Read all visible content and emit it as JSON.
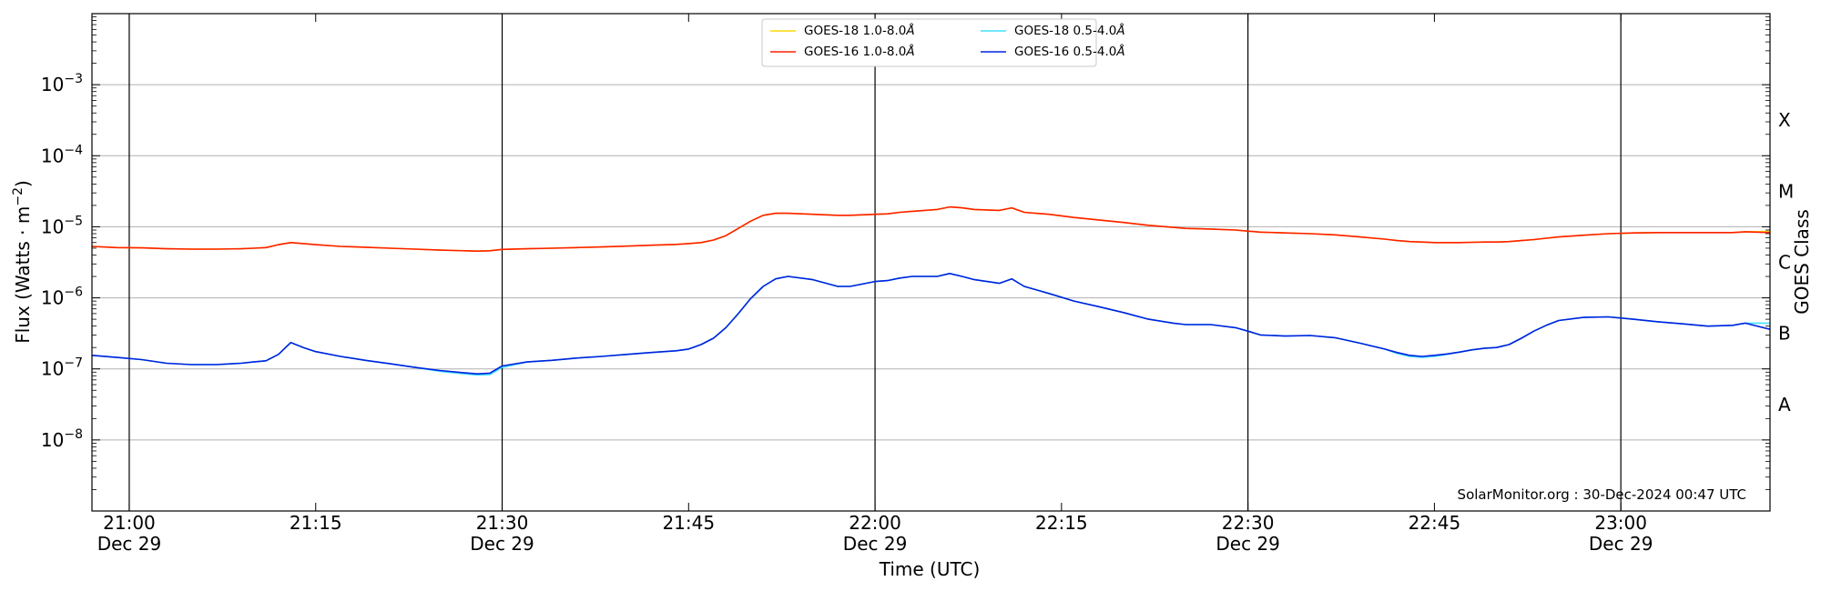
{
  "chart_data": {
    "type": "line",
    "xlabel": "Time (UTC)",
    "ylabel": "Flux (Watts · m",
    "ylabel_sup": "−2",
    "ylabel_close": ")",
    "y2label": "GOES Class",
    "yscale": "log",
    "xlim": [
      "2024-12-29T20:57",
      "2024-12-29T23:12"
    ],
    "ylim": [
      1e-09,
      0.01
    ],
    "grid": true,
    "legend_placement": "top-center",
    "x_ticks": [
      {
        "time": "2024-12-29T21:00",
        "label": "21:00",
        "sublabel": "Dec 29",
        "major": true
      },
      {
        "time": "2024-12-29T21:15",
        "label": "21:15",
        "sublabel": "",
        "major": false
      },
      {
        "time": "2024-12-29T21:30",
        "label": "21:30",
        "sublabel": "Dec 29",
        "major": true
      },
      {
        "time": "2024-12-29T21:45",
        "label": "21:45",
        "sublabel": "",
        "major": false
      },
      {
        "time": "2024-12-29T22:00",
        "label": "22:00",
        "sublabel": "Dec 29",
        "major": true
      },
      {
        "time": "2024-12-29T22:15",
        "label": "22:15",
        "sublabel": "",
        "major": false
      },
      {
        "time": "2024-12-29T22:30",
        "label": "22:30",
        "sublabel": "Dec 29",
        "major": true
      },
      {
        "time": "2024-12-29T22:45",
        "label": "22:45",
        "sublabel": "",
        "major": false
      },
      {
        "time": "2024-12-29T23:00",
        "label": "23:00",
        "sublabel": "Dec 29",
        "major": true
      }
    ],
    "y_ticks": [
      {
        "value": 1e-08,
        "base": "10",
        "exp": "−8"
      },
      {
        "value": 1e-07,
        "base": "10",
        "exp": "−7"
      },
      {
        "value": 1e-06,
        "base": "10",
        "exp": "−6"
      },
      {
        "value": 1e-05,
        "base": "10",
        "exp": "−5"
      },
      {
        "value": 0.0001,
        "base": "10",
        "exp": "−4"
      },
      {
        "value": 0.001,
        "base": "10",
        "exp": "−3"
      }
    ],
    "goes_classes": [
      {
        "label": "A",
        "value": 3.16e-08
      },
      {
        "label": "B",
        "value": 3.16e-07
      },
      {
        "label": "C",
        "value": 3.16e-06
      },
      {
        "label": "M",
        "value": 3.16e-05
      },
      {
        "label": "X",
        "value": 0.000316
      }
    ],
    "x": [
      "2024-12-29T20:57",
      "2024-12-29T20:59",
      "2024-12-29T21:01",
      "2024-12-29T21:03",
      "2024-12-29T21:05",
      "2024-12-29T21:07",
      "2024-12-29T21:09",
      "2024-12-29T21:10",
      "2024-12-29T21:11",
      "2024-12-29T21:12",
      "2024-12-29T21:13",
      "2024-12-29T21:14",
      "2024-12-29T21:15",
      "2024-12-29T21:17",
      "2024-12-29T21:19",
      "2024-12-29T21:21",
      "2024-12-29T21:23",
      "2024-12-29T21:25",
      "2024-12-29T21:27",
      "2024-12-29T21:28",
      "2024-12-29T21:29",
      "2024-12-29T21:30",
      "2024-12-29T21:32",
      "2024-12-29T21:34",
      "2024-12-29T21:36",
      "2024-12-29T21:38",
      "2024-12-29T21:40",
      "2024-12-29T21:42",
      "2024-12-29T21:44",
      "2024-12-29T21:45",
      "2024-12-29T21:46",
      "2024-12-29T21:47",
      "2024-12-29T21:48",
      "2024-12-29T21:49",
      "2024-12-29T21:50",
      "2024-12-29T21:51",
      "2024-12-29T21:52",
      "2024-12-29T21:53",
      "2024-12-29T21:55",
      "2024-12-29T21:57",
      "2024-12-29T21:58",
      "2024-12-29T22:00",
      "2024-12-29T22:01",
      "2024-12-29T22:02",
      "2024-12-29T22:03",
      "2024-12-29T22:05",
      "2024-12-29T22:06",
      "2024-12-29T22:07",
      "2024-12-29T22:08",
      "2024-12-29T22:10",
      "2024-12-29T22:11",
      "2024-12-29T22:12",
      "2024-12-29T22:14",
      "2024-12-29T22:16",
      "2024-12-29T22:18",
      "2024-12-29T22:20",
      "2024-12-29T22:22",
      "2024-12-29T22:24",
      "2024-12-29T22:25",
      "2024-12-29T22:27",
      "2024-12-29T22:29",
      "2024-12-29T22:30",
      "2024-12-29T22:31",
      "2024-12-29T22:33",
      "2024-12-29T22:35",
      "2024-12-29T22:37",
      "2024-12-29T22:39",
      "2024-12-29T22:41",
      "2024-12-29T22:42",
      "2024-12-29T22:43",
      "2024-12-29T22:44",
      "2024-12-29T22:45",
      "2024-12-29T22:46",
      "2024-12-29T22:47",
      "2024-12-29T22:48",
      "2024-12-29T22:49",
      "2024-12-29T22:50",
      "2024-12-29T22:51",
      "2024-12-29T22:52",
      "2024-12-29T22:53",
      "2024-12-29T22:54",
      "2024-12-29T22:55",
      "2024-12-29T22:57",
      "2024-12-29T22:59",
      "2024-12-29T23:01",
      "2024-12-29T23:03",
      "2024-12-29T23:05",
      "2024-12-29T23:07",
      "2024-12-29T23:09",
      "2024-12-29T23:10",
      "2024-12-29T23:12"
    ],
    "series": [
      {
        "name": "GOES-18 1.0-8.0",
        "unit": "Å",
        "color": "#ffd700",
        "values": [
          5.3e-06,
          5.1e-06,
          5.05e-06,
          4.9e-06,
          4.85e-06,
          4.85e-06,
          4.9e-06,
          5e-06,
          5.1e-06,
          5.6e-06,
          6e-06,
          5.8e-06,
          5.6e-06,
          5.3e-06,
          5.15e-06,
          5e-06,
          4.85e-06,
          4.7e-06,
          4.6e-06,
          4.55e-06,
          4.6e-06,
          4.8e-06,
          4.9e-06,
          5e-06,
          5.1e-06,
          5.2e-06,
          5.35e-06,
          5.5e-06,
          5.65e-06,
          5.8e-06,
          6e-06,
          6.5e-06,
          7.5e-06,
          9.5e-06,
          1.2e-05,
          1.45e-05,
          1.55e-05,
          1.55e-05,
          1.5e-05,
          1.45e-05,
          1.45e-05,
          1.5e-05,
          1.52e-05,
          1.6e-05,
          1.65e-05,
          1.75e-05,
          1.9e-05,
          1.85e-05,
          1.75e-05,
          1.7e-05,
          1.85e-05,
          1.6e-05,
          1.5e-05,
          1.35e-05,
          1.25e-05,
          1.15e-05,
          1.05e-05,
          9.8e-06,
          9.5e-06,
          9.3e-06,
          9e-06,
          8.7e-06,
          8.4e-06,
          8.2e-06,
          8e-06,
          7.7e-06,
          7.2e-06,
          6.7e-06,
          6.4e-06,
          6.2e-06,
          6.1e-06,
          6e-06,
          6e-06,
          6e-06,
          6.05e-06,
          6.1e-06,
          6.1e-06,
          6.2e-06,
          6.4e-06,
          6.6e-06,
          6.9e-06,
          7.2e-06,
          7.6e-06,
          8e-06,
          8.2e-06,
          8.3e-06,
          8.3e-06,
          8.3e-06,
          8.3e-06,
          8.5e-06,
          8.6e-06
        ]
      },
      {
        "name": "GOES-18 0.5-4.0",
        "unit": "Å",
        "color": "#40e0ff",
        "values": [
          1.55e-07,
          1.45e-07,
          1.35e-07,
          1.2e-07,
          1.15e-07,
          1.15e-07,
          1.2e-07,
          1.25e-07,
          1.3e-07,
          1.6e-07,
          2.35e-07,
          2e-07,
          1.75e-07,
          1.5e-07,
          1.32e-07,
          1.18e-07,
          1.05e-07,
          9.2e-08,
          8.5e-08,
          8.2e-08,
          8.3e-08,
          1.05e-07,
          1.25e-07,
          1.32e-07,
          1.42e-07,
          1.5e-07,
          1.6e-07,
          1.7e-07,
          1.8e-07,
          1.9e-07,
          2.2e-07,
          2.7e-07,
          3.8e-07,
          6e-07,
          9.8e-07,
          1.45e-06,
          1.85e-06,
          2e-06,
          1.8e-06,
          1.45e-06,
          1.45e-06,
          1.7e-06,
          1.75e-06,
          1.9e-06,
          2e-06,
          2e-06,
          2.2e-06,
          2e-06,
          1.8e-06,
          1.6e-06,
          1.85e-06,
          1.45e-06,
          1.15e-06,
          9e-07,
          7.5e-07,
          6.2e-07,
          5e-07,
          4.4e-07,
          4.2e-07,
          4.2e-07,
          3.8e-07,
          3.4e-07,
          3e-07,
          2.9e-07,
          2.95e-07,
          2.75e-07,
          2.3e-07,
          1.9e-07,
          1.65e-07,
          1.5e-07,
          1.45e-07,
          1.5e-07,
          1.6e-07,
          1.72e-07,
          1.85e-07,
          1.95e-07,
          2e-07,
          2.2e-07,
          2.7e-07,
          3.4e-07,
          4.1e-07,
          4.8e-07,
          5.3e-07,
          5.4e-07,
          5e-07,
          4.6e-07,
          4.3e-07,
          4e-07,
          4.1e-07,
          4.4e-07,
          4.4e-07
        ]
      },
      {
        "name": "GOES-16 1.0-8.0",
        "unit": "Å",
        "color": "#ff2000",
        "values": [
          5.3e-06,
          5.1e-06,
          5.05e-06,
          4.9e-06,
          4.85e-06,
          4.85e-06,
          4.9e-06,
          5e-06,
          5.1e-06,
          5.6e-06,
          6e-06,
          5.8e-06,
          5.6e-06,
          5.3e-06,
          5.15e-06,
          5e-06,
          4.85e-06,
          4.7e-06,
          4.6e-06,
          4.55e-06,
          4.6e-06,
          4.8e-06,
          4.9e-06,
          5e-06,
          5.1e-06,
          5.2e-06,
          5.35e-06,
          5.5e-06,
          5.65e-06,
          5.8e-06,
          6e-06,
          6.5e-06,
          7.5e-06,
          9.5e-06,
          1.2e-05,
          1.45e-05,
          1.55e-05,
          1.55e-05,
          1.5e-05,
          1.45e-05,
          1.45e-05,
          1.5e-05,
          1.52e-05,
          1.6e-05,
          1.65e-05,
          1.75e-05,
          1.9e-05,
          1.85e-05,
          1.75e-05,
          1.7e-05,
          1.85e-05,
          1.6e-05,
          1.5e-05,
          1.35e-05,
          1.25e-05,
          1.15e-05,
          1.05e-05,
          9.8e-06,
          9.5e-06,
          9.3e-06,
          9e-06,
          8.7e-06,
          8.4e-06,
          8.2e-06,
          8e-06,
          7.7e-06,
          7.2e-06,
          6.7e-06,
          6.4e-06,
          6.2e-06,
          6.1e-06,
          6e-06,
          6e-06,
          6e-06,
          6.05e-06,
          6.1e-06,
          6.1e-06,
          6.2e-06,
          6.4e-06,
          6.6e-06,
          6.9e-06,
          7.2e-06,
          7.6e-06,
          8e-06,
          8.2e-06,
          8.3e-06,
          8.3e-06,
          8.3e-06,
          8.3e-06,
          8.5e-06,
          8.3e-06
        ]
      },
      {
        "name": "GOES-16 0.5-4.0",
        "unit": "Å",
        "color": "#0022dd",
        "values": [
          1.55e-07,
          1.45e-07,
          1.35e-07,
          1.2e-07,
          1.15e-07,
          1.15e-07,
          1.2e-07,
          1.25e-07,
          1.3e-07,
          1.6e-07,
          2.35e-07,
          2e-07,
          1.75e-07,
          1.5e-07,
          1.32e-07,
          1.18e-07,
          1.05e-07,
          9.5e-08,
          8.8e-08,
          8.5e-08,
          8.7e-08,
          1.1e-07,
          1.25e-07,
          1.32e-07,
          1.42e-07,
          1.5e-07,
          1.6e-07,
          1.7e-07,
          1.8e-07,
          1.9e-07,
          2.2e-07,
          2.7e-07,
          3.8e-07,
          6e-07,
          9.8e-07,
          1.45e-06,
          1.85e-06,
          2e-06,
          1.8e-06,
          1.45e-06,
          1.45e-06,
          1.7e-06,
          1.75e-06,
          1.9e-06,
          2e-06,
          2e-06,
          2.2e-06,
          2e-06,
          1.8e-06,
          1.6e-06,
          1.85e-06,
          1.45e-06,
          1.15e-06,
          9e-07,
          7.5e-07,
          6.2e-07,
          5e-07,
          4.4e-07,
          4.2e-07,
          4.2e-07,
          3.8e-07,
          3.4e-07,
          3e-07,
          2.9e-07,
          2.95e-07,
          2.75e-07,
          2.3e-07,
          1.9e-07,
          1.7e-07,
          1.55e-07,
          1.5e-07,
          1.55e-07,
          1.62e-07,
          1.72e-07,
          1.85e-07,
          1.95e-07,
          2e-07,
          2.2e-07,
          2.7e-07,
          3.4e-07,
          4.1e-07,
          4.8e-07,
          5.3e-07,
          5.4e-07,
          5e-07,
          4.6e-07,
          4.3e-07,
          4e-07,
          4.1e-07,
          4.4e-07,
          3.6e-07
        ]
      }
    ],
    "annotation": "SolarMonitor.org : 30-Dec-2024 00:47 UTC"
  }
}
